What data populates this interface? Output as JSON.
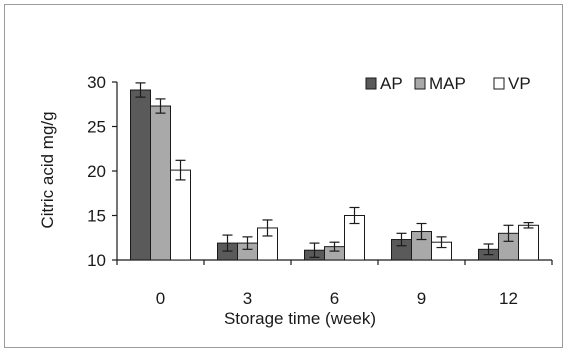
{
  "chart_data": {
    "type": "bar",
    "title": "",
    "xlabel": "Storage time (week)",
    "ylabel": "Citric acid mg/g",
    "categories": [
      "0",
      "3",
      "6",
      "9",
      "12"
    ],
    "ylim": [
      10,
      30
    ],
    "yticks": [
      "10",
      "15",
      "20",
      "25",
      "30"
    ],
    "legend_position": "top-right",
    "grid": false,
    "series": [
      {
        "name": "AP",
        "color": "#5a5a5a",
        "values": [
          29.1,
          11.9,
          11.1,
          12.3,
          11.2
        ],
        "errors": [
          0.8,
          0.9,
          0.8,
          0.7,
          0.6
        ]
      },
      {
        "name": "MAP",
        "color": "#a9a9a9",
        "values": [
          27.3,
          11.9,
          11.5,
          13.2,
          13.0
        ],
        "errors": [
          0.8,
          0.7,
          0.5,
          0.9,
          0.9
        ]
      },
      {
        "name": "VP",
        "color": "#ffffff",
        "values": [
          20.1,
          13.6,
          15.0,
          12.0,
          13.9
        ],
        "errors": [
          1.1,
          0.9,
          0.9,
          0.6,
          0.3
        ]
      }
    ]
  }
}
